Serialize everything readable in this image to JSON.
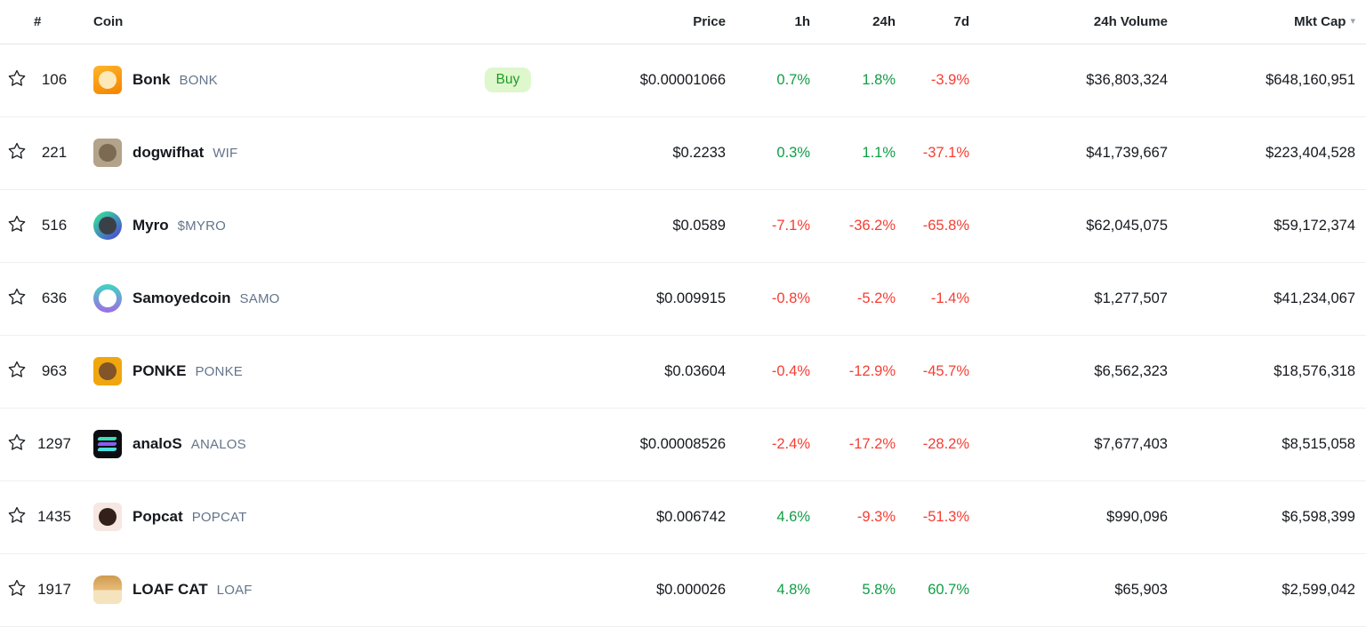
{
  "table": {
    "headers": {
      "rank": "#",
      "coin": "Coin",
      "price": "Price",
      "h1": "1h",
      "h24": "24h",
      "d7": "7d",
      "volume": "24h Volume",
      "mktcap": "Mkt Cap"
    },
    "sort_indicator": "▾"
  },
  "colors": {
    "positive": "#0f9d45",
    "negative": "#f63d33",
    "buy_bg": "#def7cc",
    "buy_text": "#1f9c27",
    "symbol_text": "#64748b",
    "header_text": "#212529",
    "body_text": "#15181d",
    "row_border": "#edf0f3"
  },
  "rows": [
    {
      "rank": "106",
      "name": "Bonk",
      "symbol": "BONK",
      "buy_label": "Buy",
      "price": "$0.00001066",
      "change_1h": "0.7%",
      "change_24h": "1.8%",
      "change_7d": "-3.9%",
      "volume_24h": "$36,803,324",
      "market_cap": "$648,160,951",
      "icon": {
        "name": "bonk-coin-icon",
        "shape": "square",
        "bg": "linear-gradient(160deg,#fdb52a,#f58300)",
        "inner": "#fde9b8"
      }
    },
    {
      "rank": "221",
      "name": "dogwifhat",
      "symbol": "WIF",
      "buy_label": "",
      "price": "$0.2233",
      "change_1h": "0.3%",
      "change_24h": "1.1%",
      "change_7d": "-37.1%",
      "volume_24h": "$41,739,667",
      "market_cap": "$223,404,528",
      "icon": {
        "name": "dogwifhat-coin-icon",
        "shape": "square",
        "bg": "#b3a38b",
        "inner": "#7d6a52"
      }
    },
    {
      "rank": "516",
      "name": "Myro",
      "symbol": "$MYRO",
      "buy_label": "",
      "price": "$0.0589",
      "change_1h": "-7.1%",
      "change_24h": "-36.2%",
      "change_7d": "-65.8%",
      "volume_24h": "$62,045,075",
      "market_cap": "$59,172,374",
      "icon": {
        "name": "myro-coin-icon",
        "shape": "circle",
        "bg": "linear-gradient(140deg,#36d39f 15%,#4b4dd2 90%)",
        "inner": "#3b4048"
      }
    },
    {
      "rank": "636",
      "name": "Samoyedcoin",
      "symbol": "SAMO",
      "buy_label": "",
      "price": "$0.009915",
      "change_1h": "-0.8%",
      "change_24h": "-5.2%",
      "change_7d": "-1.4%",
      "volume_24h": "$1,277,507",
      "market_cap": "$41,234,067",
      "icon": {
        "name": "samoyedcoin-coin-icon",
        "shape": "circle",
        "bg": "linear-gradient(180deg,#41d4c3,#9f6ce4)",
        "inner": "#ffffff"
      }
    },
    {
      "rank": "963",
      "name": "PONKE",
      "symbol": "PONKE",
      "buy_label": "",
      "price": "$0.03604",
      "change_1h": "-0.4%",
      "change_24h": "-12.9%",
      "change_7d": "-45.7%",
      "volume_24h": "$6,562,323",
      "market_cap": "$18,576,318",
      "icon": {
        "name": "ponke-coin-icon",
        "shape": "square",
        "bg": "#f0a60e",
        "inner": "#81542a"
      }
    },
    {
      "rank": "1297",
      "name": "analoS",
      "symbol": "ANALOS",
      "buy_label": "",
      "price": "$0.00008526",
      "change_1h": "-2.4%",
      "change_24h": "-17.2%",
      "change_7d": "-28.2%",
      "volume_24h": "$7,677,403",
      "market_cap": "$8,515,058",
      "icon": {
        "name": "analos-coin-icon",
        "shape": "square",
        "bg": "#0c0d10",
        "stripes": [
          "#3be0b5",
          "#8b5cf6",
          "#4adede"
        ]
      }
    },
    {
      "rank": "1435",
      "name": "Popcat",
      "symbol": "POPCAT",
      "buy_label": "",
      "price": "$0.006742",
      "change_1h": "4.6%",
      "change_24h": "-9.3%",
      "change_7d": "-51.3%",
      "volume_24h": "$990,096",
      "market_cap": "$6,598,399",
      "icon": {
        "name": "popcat-coin-icon",
        "shape": "square",
        "bg": "#f6e7e2",
        "inner": "#33201a"
      }
    },
    {
      "rank": "1917",
      "name": "LOAF CAT",
      "symbol": "LOAF",
      "buy_label": "",
      "price": "$0.000026",
      "change_1h": "4.8%",
      "change_24h": "5.8%",
      "change_7d": "60.7%",
      "volume_24h": "$65,903",
      "market_cap": "$2,599,042",
      "icon": {
        "name": "loaf-cat-coin-icon",
        "shape": "loaf",
        "bg": "linear-gradient(180deg,#cf9a50 0%,#e7bd7b 52%,#f4e3bd 52%,#f4e3bd 100%)"
      }
    }
  ]
}
